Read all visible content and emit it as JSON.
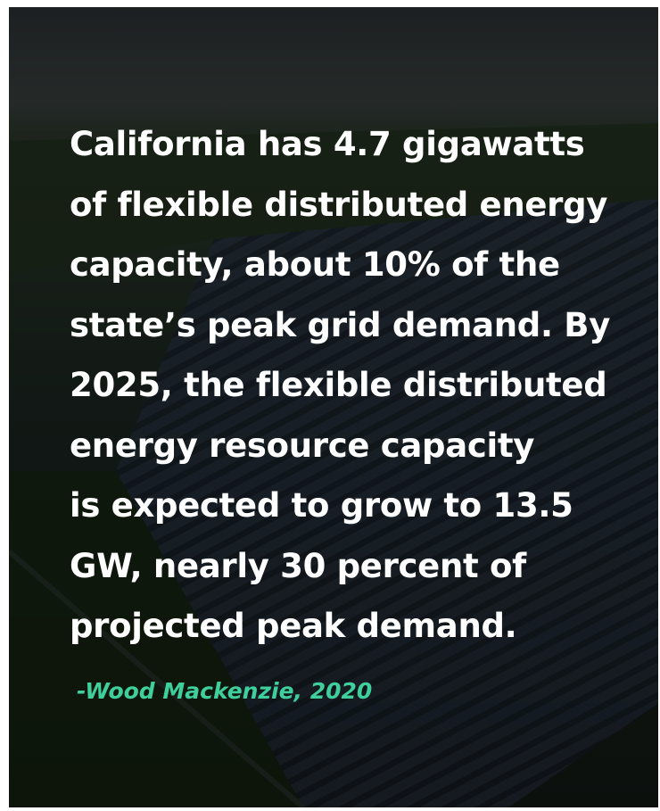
{
  "quote": {
    "lines": [
      "California has 4.7 gigawatts",
      "of flexible distributed energy",
      "capacity, about 10% of the",
      "state’s peak grid demand. By",
      "2025, the flexible distributed",
      "energy resource capacity",
      "is expected to grow to 13.5",
      "GW, nearly 30 percent of",
      "projected peak demand."
    ]
  },
  "attribution": "-Wood Mackenzie, 2020"
}
